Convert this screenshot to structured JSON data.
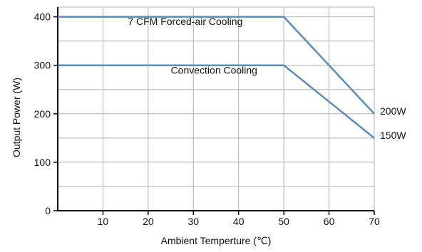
{
  "chart_data": {
    "type": "line",
    "title": "",
    "xlabel": "Ambient Temperture (℃)",
    "ylabel": "Output Power (W)",
    "xlim": [
      0,
      70
    ],
    "ylim": [
      0,
      420
    ],
    "x_ticks": [
      10,
      20,
      30,
      40,
      50,
      60,
      70
    ],
    "y_ticks": [
      0,
      100,
      200,
      300,
      400
    ],
    "grid": true,
    "legend": "none",
    "series": [
      {
        "points": [
          [
            0,
            400
          ],
          [
            50,
            400
          ],
          [
            70,
            200
          ]
        ],
        "color": "#5b8db8"
      },
      {
        "points": [
          [
            0,
            300
          ],
          [
            50,
            300
          ],
          [
            70,
            150
          ]
        ],
        "color": "#5b8db8"
      }
    ],
    "annotations": [
      {
        "text": "7 CFM Forced-air Cooling",
        "x": 15.5,
        "y": 383
      },
      {
        "text": "Convection Cooling",
        "x": 25,
        "y": 283
      }
    ],
    "end_labels": [
      {
        "text": "200W",
        "x": 70,
        "y": 200
      },
      {
        "text": "150W",
        "x": 70,
        "y": 150
      }
    ]
  }
}
